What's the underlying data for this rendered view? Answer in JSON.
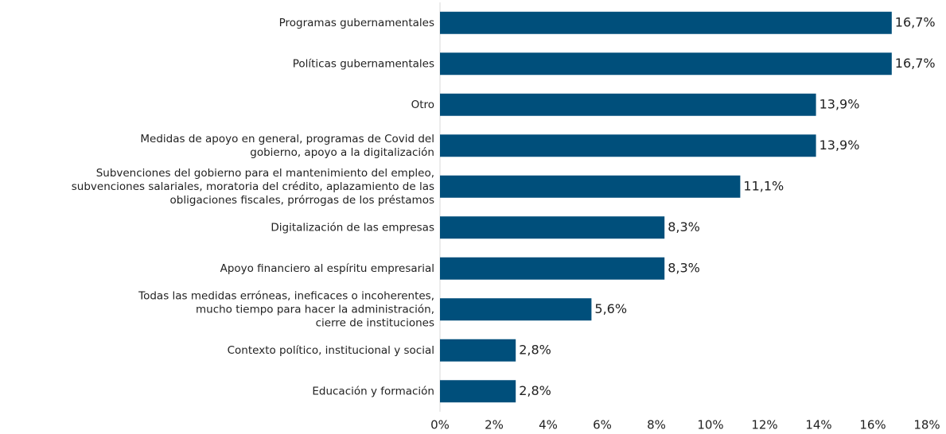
{
  "chart_data": {
    "type": "bar",
    "orientation": "horizontal",
    "categories": [
      "Programas gubernamentales",
      "Políticas gubernamentales",
      "Otro",
      "Medidas de apoyo en general, programas de Covid del\ngobierno, apoyo a la digitalización",
      "Subvenciones del gobierno para el mantenimiento del empleo,\nsubvenciones salariales, moratoria del crédito, aplazamiento de las\nobligaciones fiscales, prórrogas de los préstamos",
      "Digitalización de las empresas",
      "Apoyo financiero al espíritu empresarial",
      "Todas las medidas erróneas, ineficaces o  incoherentes,\nmucho tiempo para hacer la administración,\ncierre de instituciones",
      "Contexto político, institucional y social",
      "Educación y formación"
    ],
    "values": [
      16.7,
      16.7,
      13.9,
      13.9,
      11.1,
      8.3,
      8.3,
      5.6,
      2.8,
      2.8
    ],
    "value_labels": [
      "16,7%",
      "16,7%",
      "13,9%",
      "13,9%",
      "11,1%",
      "8,3%",
      "8,3%",
      "5,6%",
      "2,8%",
      "2,8%"
    ],
    "color": "#004f7b",
    "xlim": [
      0,
      18
    ],
    "xticks": [
      {
        "value": 0,
        "label": "0%"
      },
      {
        "value": 2,
        "label": "2%"
      },
      {
        "value": 4,
        "label": "4%"
      },
      {
        "value": 6,
        "label": "6%"
      },
      {
        "value": 8,
        "label": "8%"
      },
      {
        "value": 10,
        "label": "10%"
      },
      {
        "value": 12,
        "label": "12%"
      },
      {
        "value": 14,
        "label": "14%"
      },
      {
        "value": 16,
        "label": "16%"
      },
      {
        "value": 18,
        "label": "18%"
      }
    ],
    "grid": false
  }
}
